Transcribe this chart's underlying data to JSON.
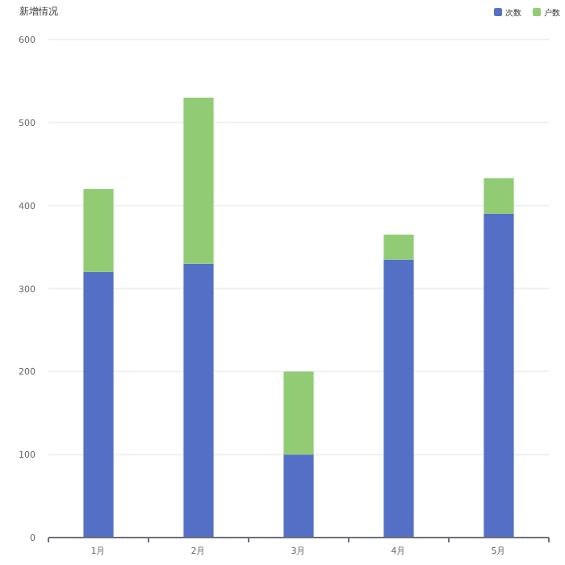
{
  "chart_data": {
    "type": "bar",
    "title": "新增情况",
    "categories": [
      "1月",
      "2月",
      "3月",
      "4月",
      "5月"
    ],
    "stacked": true,
    "series": [
      {
        "name": "次数",
        "color": "#5470c6",
        "values": [
          320,
          330,
          100,
          335,
          390
        ]
      },
      {
        "name": "户数",
        "color": "#91cc75",
        "values": [
          100,
          200,
          100,
          30,
          43
        ]
      }
    ],
    "ylim": [
      0,
      600
    ],
    "yticks": [
      0,
      100,
      200,
      300,
      400,
      500,
      600
    ],
    "grid": "y",
    "legend": "top right"
  }
}
